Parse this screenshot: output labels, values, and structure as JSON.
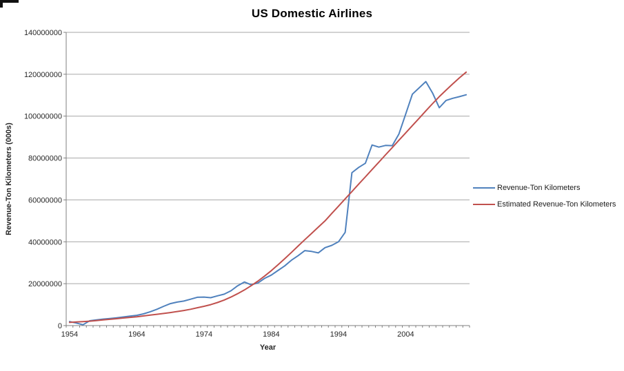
{
  "chart_data": {
    "type": "line",
    "title": "US Domestic Airlines",
    "xlabel": "Year",
    "ylabel": "Revenue-Ton Kilometers (000s)",
    "grid": "horizontal",
    "legend_position": "right",
    "ylim": [
      0,
      140000000
    ],
    "y_tick_interval": 20000000,
    "y_ticks": [
      0,
      20000000,
      40000000,
      60000000,
      80000000,
      100000000,
      120000000,
      140000000
    ],
    "x_tick_labels": [
      "1954",
      "1964",
      "1974",
      "1984",
      "1994",
      "2004"
    ],
    "x": [
      1954,
      1955,
      1956,
      1957,
      1958,
      1959,
      1960,
      1961,
      1962,
      1963,
      1964,
      1965,
      1966,
      1967,
      1968,
      1969,
      1970,
      1971,
      1972,
      1973,
      1974,
      1975,
      1976,
      1977,
      1978,
      1979,
      1980,
      1981,
      1982,
      1983,
      1984,
      1985,
      1986,
      1987,
      1988,
      1989,
      1990,
      1991,
      1992,
      1993,
      1994,
      1995,
      1996,
      1997,
      1998,
      1999,
      2000,
      2001,
      2002,
      2003,
      2004,
      2005,
      2006,
      2007,
      2008,
      2009,
      2010,
      2011,
      2012,
      2013
    ],
    "series": [
      {
        "name": "Revenue-Ton Kilometers",
        "color": "#4F81BD",
        "values": [
          1900000,
          1200000,
          400000,
          2300000,
          2700000,
          3100000,
          3400000,
          3700000,
          4100000,
          4500000,
          4900000,
          5600000,
          6600000,
          7800000,
          9200000,
          10500000,
          11200000,
          11700000,
          12600000,
          13500000,
          13600000,
          13300000,
          14200000,
          15000000,
          16600000,
          19000000,
          20800000,
          19500000,
          20300000,
          22500000,
          24100000,
          26300000,
          28500000,
          31200000,
          33400000,
          35800000,
          35400000,
          34700000,
          37200000,
          38300000,
          40000000,
          44500000,
          73000000,
          75500000,
          77500000,
          86200000,
          85200000,
          86000000,
          85900000,
          91500000,
          101000000,
          110500000,
          113500000,
          116500000,
          111000000,
          104000000,
          107500000,
          108500000,
          109300000,
          110200000
        ]
      },
      {
        "name": "Estimated Revenue-Ton Kilometers",
        "color": "#C0504D",
        "values": [
          1500000,
          1700000,
          1900000,
          2100000,
          2400000,
          2700000,
          3000000,
          3300000,
          3600000,
          3900000,
          4200000,
          4600000,
          5000000,
          5400000,
          5800000,
          6200000,
          6700000,
          7200000,
          7800000,
          8500000,
          9200000,
          10000000,
          11000000,
          12200000,
          13600000,
          15200000,
          17000000,
          19000000,
          21200000,
          23600000,
          26200000,
          29000000,
          31900000,
          34900000,
          38000000,
          41000000,
          44000000,
          47000000,
          50000000,
          53500000,
          57000000,
          60500000,
          64000000,
          67500000,
          71000000,
          74500000,
          78000000,
          81500000,
          85000000,
          88500000,
          92000000,
          95500000,
          99000000,
          102500000,
          106000000,
          109300000,
          112400000,
          115400000,
          118300000,
          121000000
        ]
      }
    ]
  }
}
